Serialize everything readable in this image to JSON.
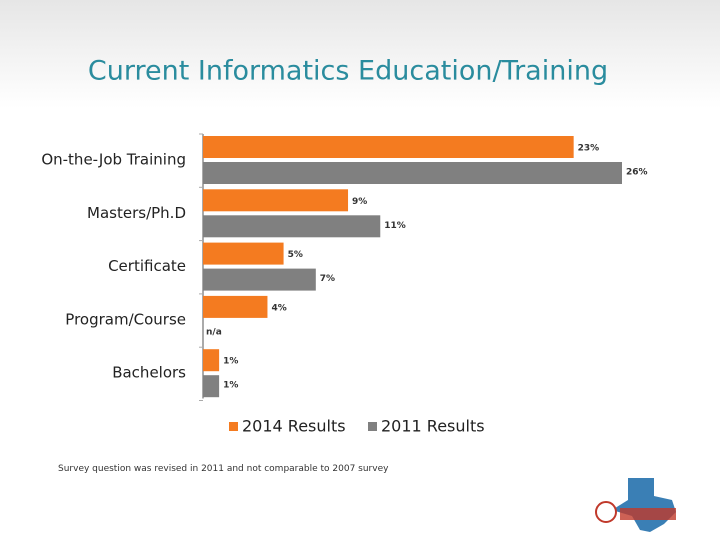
{
  "chart_data": {
    "type": "bar",
    "orientation": "horizontal",
    "title": "Current Informatics Education/Training",
    "categories": [
      "On-the-Job Training",
      "Masters/Ph.D",
      "Certificate",
      "Program/Course",
      "Bachelors"
    ],
    "series": [
      {
        "name": "2014 Results",
        "color": "#f47b20",
        "values": [
          23,
          9,
          5,
          4,
          1
        ],
        "value_labels": [
          "23%",
          "9%",
          "5%",
          "4%",
          "1%"
        ]
      },
      {
        "name": "2011 Results",
        "color": "#808080",
        "values": [
          26,
          11,
          7,
          null,
          1
        ],
        "value_labels": [
          "26%",
          "11%",
          "7%",
          "n/a",
          "1%"
        ]
      }
    ],
    "legend": "bottom",
    "footnote": "Survey question was revised in 2011 and not comparable to 2007 survey"
  }
}
